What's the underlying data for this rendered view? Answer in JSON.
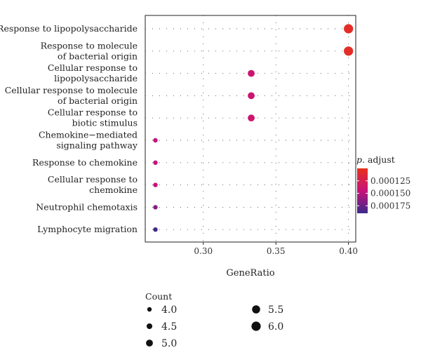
{
  "chart_data": {
    "type": "scatter",
    "title": "",
    "xlabel": "GeneRatio",
    "ylabel": "",
    "xlim": [
      0.26,
      0.405
    ],
    "x_ticks": [
      {
        "value": 0.3,
        "label": "0.30"
      },
      {
        "value": 0.35,
        "label": "0.35"
      },
      {
        "value": 0.4,
        "label": "0.40"
      }
    ],
    "grid": true,
    "categories": [
      "Response to lipopolysaccharide",
      "Response to molecule\nof bacterial origin",
      "Cellular response to\nlipopolysaccharide",
      "Cellular response to molecule\nof bacterial origin",
      "Cellular response to\nbiotic stimulus",
      "Chemokine−mediated\nsignaling pathway",
      "Response to chemokine",
      "Cellular response to\nchemokine",
      "Neutrophil chemotaxis",
      "Lymphocyte migration"
    ],
    "points": [
      {
        "category": "Response to lipopolysaccharide",
        "gene_ratio": 0.4,
        "count": 6,
        "p_adjust": 0.000105
      },
      {
        "category": "Response to molecule\nof bacterial origin",
        "gene_ratio": 0.4,
        "count": 6,
        "p_adjust": 0.000105
      },
      {
        "category": "Cellular response to\nlipopolysaccharide",
        "gene_ratio": 0.333,
        "count": 5,
        "p_adjust": 0.00014
      },
      {
        "category": "Cellular response to molecule\nof bacterial origin",
        "gene_ratio": 0.333,
        "count": 5,
        "p_adjust": 0.00014
      },
      {
        "category": "Cellular response to\nbiotic stimulus",
        "gene_ratio": 0.333,
        "count": 5,
        "p_adjust": 0.00014
      },
      {
        "category": "Chemokine−mediated\nsignaling pathway",
        "gene_ratio": 0.267,
        "count": 4,
        "p_adjust": 0.000145
      },
      {
        "category": "Response to chemokine",
        "gene_ratio": 0.267,
        "count": 4,
        "p_adjust": 0.000145
      },
      {
        "category": "Cellular response to\nchemokine",
        "gene_ratio": 0.267,
        "count": 4,
        "p_adjust": 0.000145
      },
      {
        "category": "Neutrophil chemotaxis",
        "gene_ratio": 0.267,
        "count": 4,
        "p_adjust": 0.000165
      },
      {
        "category": "Lymphocyte migration",
        "gene_ratio": 0.267,
        "count": 4,
        "p_adjust": 0.000188
      }
    ],
    "color_legend": {
      "title_italic": "p.",
      "title_rest": " adjust",
      "range": [
        0.0001,
        0.00019
      ],
      "ticks": [
        {
          "value": 0.000125,
          "label": "0.000125"
        },
        {
          "value": 0.00015,
          "label": "0.000150"
        },
        {
          "value": 0.000175,
          "label": "0.000175"
        }
      ],
      "low_color": "#e8301c",
      "mid_color": "#c8127a",
      "high_color": "#3b2a8c"
    },
    "size_legend": {
      "title": "Count",
      "items": [
        {
          "value": 4.0,
          "label": "4.0"
        },
        {
          "value": 4.5,
          "label": "4.5"
        },
        {
          "value": 5.0,
          "label": "5.0"
        },
        {
          "value": 5.5,
          "label": "5.5"
        },
        {
          "value": 6.0,
          "label": "6.0"
        }
      ]
    }
  }
}
